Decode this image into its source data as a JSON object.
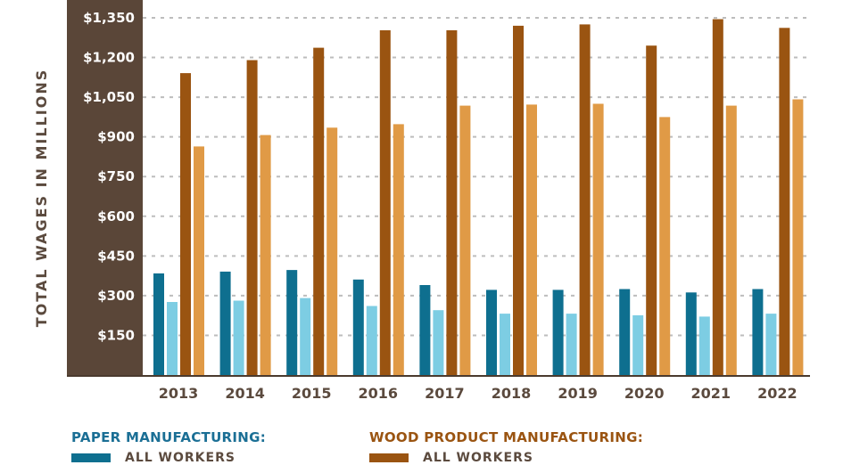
{
  "chart_data": {
    "type": "bar",
    "ylabel": "TOTAL WAGES IN MILLIONS",
    "ylim": [
      0,
      1350
    ],
    "yticks": [
      "$150",
      "$300",
      "$450",
      "$600",
      "$750",
      "$900",
      "$1,050",
      "$1,200",
      "$1,350"
    ],
    "categories": [
      "2013",
      "2014",
      "2015",
      "2016",
      "2017",
      "2018",
      "2019",
      "2020",
      "2021",
      "2022"
    ],
    "series": [
      {
        "group": "paper",
        "name": "ALL WORKERS",
        "color": "#0e6f8f",
        "values": [
          384,
          391,
          397,
          361,
          340,
          322,
          322,
          325,
          312,
          325
        ]
      },
      {
        "group": "paper",
        "name": "",
        "color": "#7dcde3",
        "values": [
          276,
          281,
          291,
          261,
          245,
          232,
          232,
          226,
          221,
          232
        ]
      },
      {
        "group": "wood",
        "name": "ALL WORKERS",
        "color": "#9a5411",
        "values": [
          1141,
          1190,
          1237,
          1303,
          1303,
          1320,
          1325,
          1245,
          1345,
          1312
        ]
      },
      {
        "group": "wood",
        "name": "",
        "color": "#e09a46",
        "values": [
          864,
          907,
          935,
          948,
          1018,
          1022,
          1025,
          975,
          1018,
          1042
        ]
      }
    ],
    "grid": true
  },
  "legend": {
    "paper_title": "PAPER MANUFACTURING:",
    "paper_title_color": "#1b6f95",
    "paper_label": "ALL WORKERS",
    "wood_title": "WOOD PRODUCT MANUFACTURING:",
    "wood_title_color": "#9a5411",
    "wood_label": "ALL WORKERS"
  },
  "colors": {
    "axis_panel": "#5a4638",
    "grid": "#bdbdbd",
    "axis_text": "#5b4a3e"
  }
}
